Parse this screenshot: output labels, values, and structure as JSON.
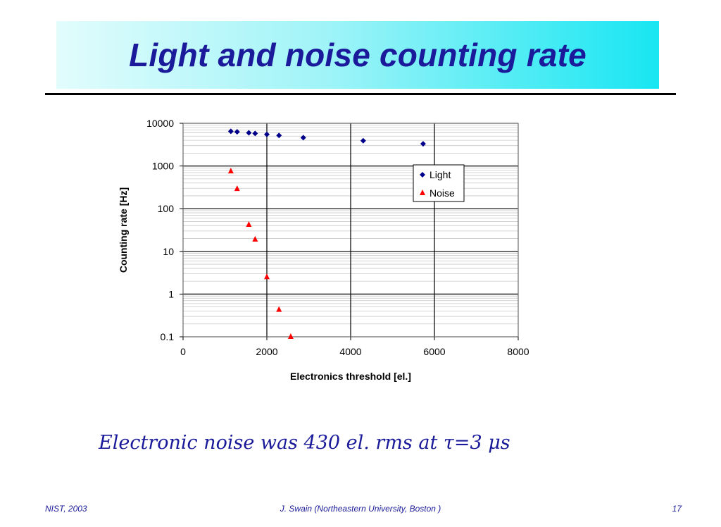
{
  "slide": {
    "title": "Light and noise counting rate",
    "caption": "Electronic noise was 430 el. rms at τ=3 μs",
    "footer_left": "NIST, 2003",
    "footer_center": "J. Swain (Northeastern University, Boston )",
    "footer_right": "17"
  },
  "chart_data": {
    "type": "scatter",
    "xlabel": "Electronics threshold [el.]",
    "ylabel": "Counting rate [Hz]",
    "xlim": [
      0,
      8000
    ],
    "ylim": [
      0.1,
      10000
    ],
    "y_scale": "log",
    "x_ticks": [
      "0",
      "2000",
      "4000",
      "6000",
      "8000"
    ],
    "y_ticks": [
      "0.1",
      "1",
      "10",
      "100",
      "1000",
      "10000"
    ],
    "grid": true,
    "legend_position": "right",
    "series": [
      {
        "name": "Light",
        "marker": "diamond",
        "color": "#00008b",
        "x": [
          1140,
          1290,
          1570,
          1720,
          2000,
          2290,
          2870,
          4300,
          5730
        ],
        "y": [
          6500,
          6300,
          6000,
          5800,
          5500,
          5200,
          4600,
          3900,
          3300
        ]
      },
      {
        "name": "Noise",
        "marker": "triangle",
        "color": "#ff0000",
        "x": [
          1140,
          1290,
          1570,
          1720,
          2000,
          2290,
          2570
        ],
        "y": [
          750,
          290,
          42,
          19,
          2.5,
          0.43,
          0.1
        ]
      }
    ]
  }
}
